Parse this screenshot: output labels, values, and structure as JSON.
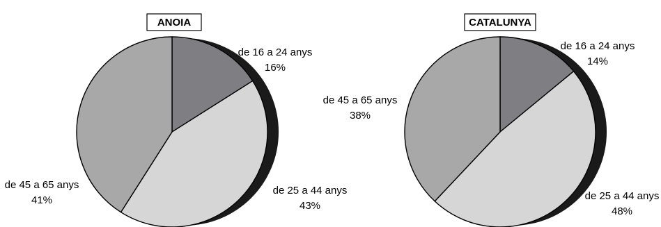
{
  "chart_data": [
    {
      "type": "pie",
      "title": "ANOIA",
      "categories": [
        "de 16 a 24 anys",
        "de 25 a 44 anys",
        "de 45 a 65 anys"
      ],
      "values": [
        16,
        43,
        41
      ],
      "value_labels": [
        "16%",
        "43%",
        "41%"
      ],
      "colors": [
        "#7f7f83",
        "#d6d6d6",
        "#a8a8a8"
      ],
      "edge_color": "#1a1a1a"
    },
    {
      "type": "pie",
      "title": "CATALUNYA",
      "categories": [
        "de 16 a 24 anys",
        "de 25 a 44 anys",
        "de 45 a 65 anys"
      ],
      "values": [
        14,
        48,
        38
      ],
      "value_labels": [
        "14%",
        "48%",
        "38%"
      ],
      "colors": [
        "#7f7f83",
        "#d6d6d6",
        "#a8a8a8"
      ],
      "edge_color": "#1a1a1a"
    }
  ]
}
